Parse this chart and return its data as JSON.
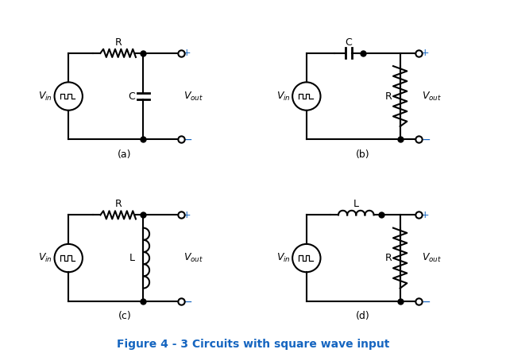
{
  "title": "Figure 4 - 3 Circuits with square wave input",
  "title_color": "#1565C0",
  "title_fontsize": 10,
  "background_color": "#ffffff",
  "labels": {
    "a": "(a)",
    "b": "(b)",
    "c": "(c)",
    "d": "(d)",
    "vin": "Vᴵₙ",
    "vout": "Vₒᵘₜ",
    "R": "R",
    "C": "C",
    "L": "L",
    "plus": "+",
    "minus": "−"
  }
}
